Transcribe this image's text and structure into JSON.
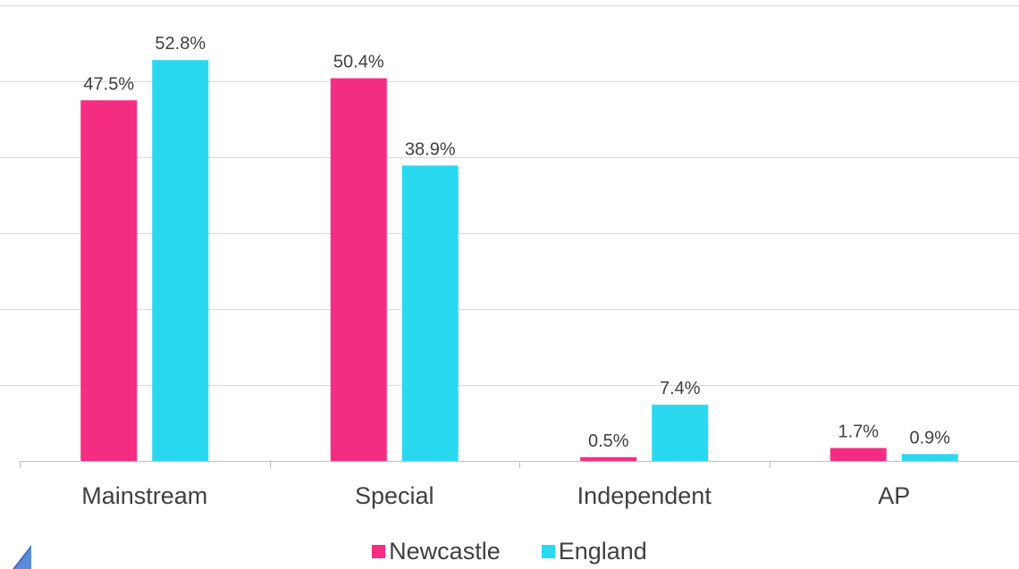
{
  "colors": {
    "newcastle": "#f42d83",
    "england": "#2ad9ef"
  },
  "legend": {
    "items": [
      {
        "label": "Newcastle",
        "color": "#f42d83"
      },
      {
        "label": "England",
        "color": "#2ad9ef"
      }
    ]
  },
  "chart_data": {
    "type": "bar",
    "title": "",
    "xlabel": "",
    "ylabel": "",
    "categories": [
      "Mainstream",
      "Special",
      "Independent",
      "AP"
    ],
    "series": [
      {
        "name": "Newcastle",
        "values": [
          47.5,
          50.4,
          0.5,
          1.7
        ],
        "labels": [
          "47.5%",
          "50.4%",
          "0.5%",
          "1.7%"
        ]
      },
      {
        "name": "England",
        "values": [
          52.8,
          38.9,
          7.4,
          0.9
        ],
        "labels": [
          "52.8%",
          "38.9%",
          "7.4%",
          "0.9%"
        ]
      }
    ],
    "ylim": [
      0,
      60
    ],
    "y_gridlines": [
      10,
      20,
      30,
      40,
      50,
      60
    ],
    "grid": true,
    "legend_position": "bottom"
  }
}
